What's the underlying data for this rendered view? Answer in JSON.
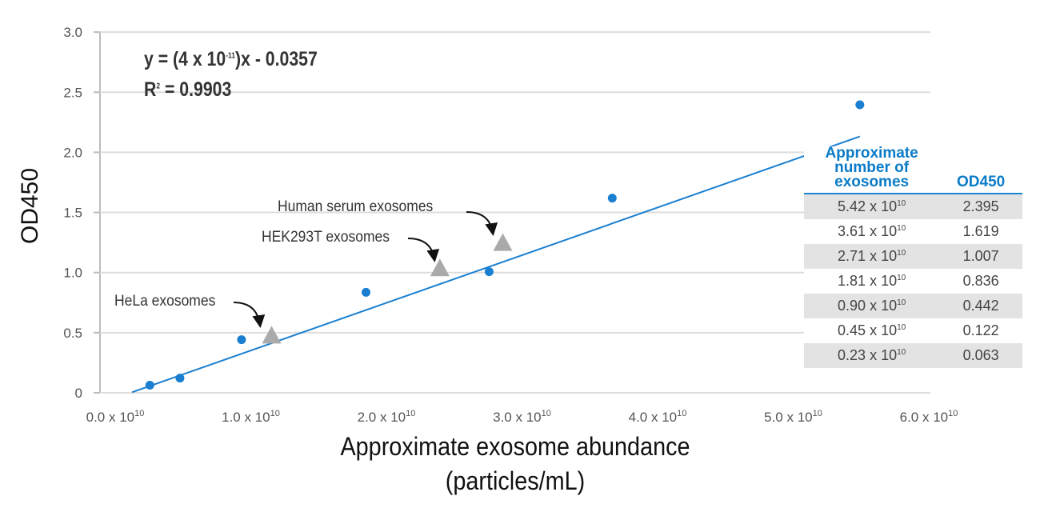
{
  "chart_data": {
    "type": "scatter",
    "xlabel": "Approximate exosome abundance",
    "xlabel_line2": "(particles/mL)",
    "ylabel": "OD450",
    "xlim": [
      0,
      6.0
    ],
    "ylim": [
      0,
      3.0
    ],
    "x_unit_exponent": "10",
    "x_ticks": [
      "0.0 x 10",
      "1.0 x 10",
      "2.0 x 10",
      "3.0 x 10",
      "4.0 x 10",
      "5.0 x 10",
      "6.0 x 10"
    ],
    "x_tick_values": [
      0,
      1,
      2,
      3,
      4,
      5,
      6
    ],
    "y_ticks": [
      "0",
      "0.5",
      "1.0",
      "1.5",
      "2.0",
      "2.5",
      "3.0"
    ],
    "y_tick_values": [
      0,
      0.5,
      1.0,
      1.5,
      2.0,
      2.5,
      3.0
    ],
    "grid": "horizontal",
    "series": [
      {
        "marker": "circle",
        "color": "#1a7fd0",
        "x": [
          5.42,
          3.61,
          2.71,
          1.81,
          0.9,
          0.45,
          0.23
        ],
        "y": [
          2.395,
          1.619,
          1.007,
          0.836,
          0.442,
          0.122,
          0.063
        ]
      },
      {
        "marker": "triangle",
        "color": "#aaaaaa",
        "x": [
          1.12,
          2.35,
          2.81
        ],
        "y": [
          0.47,
          1.03,
          1.24
        ],
        "labels": [
          "HeLa exosomes",
          "HEK293T exosomes",
          "Human serum exosomes"
        ]
      }
    ],
    "fit": {
      "slope": 4e-11,
      "intercept": -0.0357,
      "r2": 0.9903,
      "color": "#1a7fd0",
      "x_range": [
        0.1,
        5.42
      ]
    },
    "equation": {
      "line1_a": "y = (4 x 10",
      "line1_exp": "-11",
      "line1_b": ")x - 0.0357",
      "line2_a": "R",
      "line2_exp": "2",
      "line2_b": " = 0.9903"
    },
    "table": {
      "header": [
        "Approximate number of exosomes",
        "OD450"
      ],
      "rows": [
        [
          "5.42 x 10",
          "10",
          "2.395"
        ],
        [
          "3.61 x 10",
          "10",
          "1.619"
        ],
        [
          "2.71 x 10",
          "10",
          "1.007"
        ],
        [
          "1.81 x 10",
          "10",
          "0.836"
        ],
        [
          "0.90 x 10",
          "10",
          "0.442"
        ],
        [
          "0.45 x 10",
          "10",
          "0.122"
        ],
        [
          "0.23 x 10",
          "10",
          "0.063"
        ]
      ]
    }
  }
}
